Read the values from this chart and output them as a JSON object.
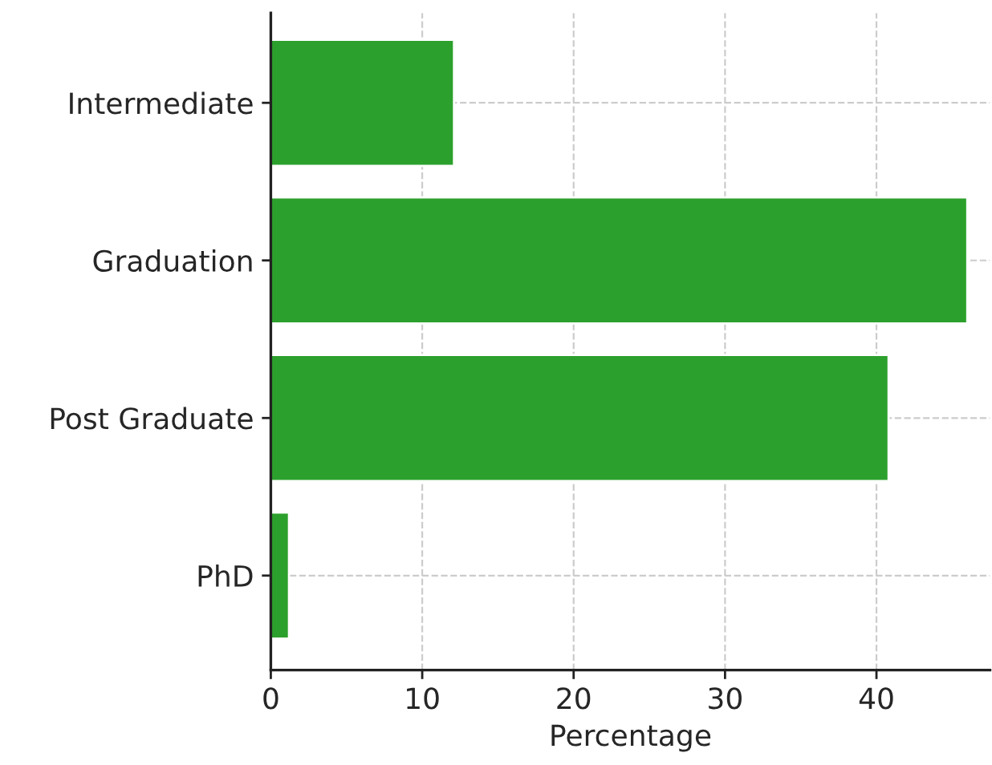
{
  "chart_data": {
    "type": "bar",
    "orientation": "horizontal",
    "xlabel": "Percentage",
    "categories": [
      "Intermediate",
      "Graduation",
      "Post Graduate",
      "PhD"
    ],
    "values": [
      12.1,
      46.0,
      40.8,
      1.2
    ],
    "color": "#2ca02c",
    "xlim": [
      0,
      47.5
    ],
    "xticks": [
      0,
      10,
      20,
      30,
      40
    ],
    "grid": true
  }
}
